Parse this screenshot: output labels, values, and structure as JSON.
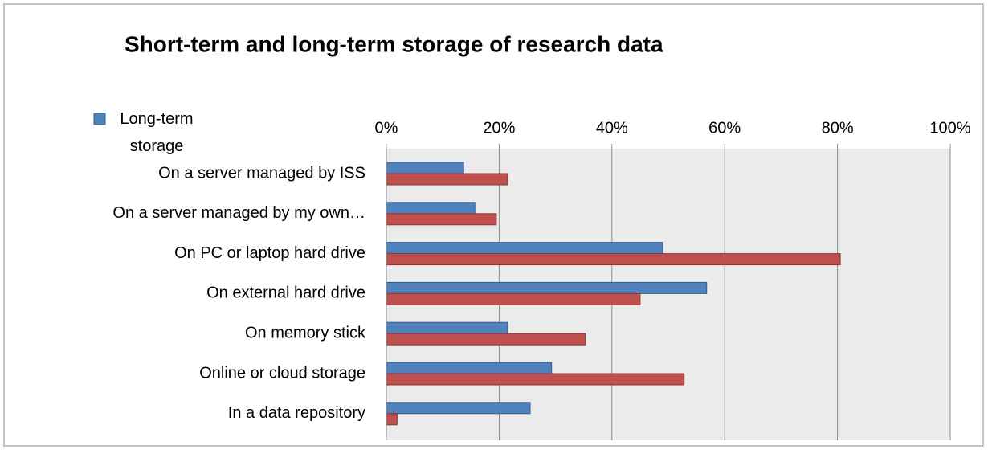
{
  "chart_data": {
    "type": "barh",
    "title": "Short-term and long-term storage of research data",
    "categories": [
      "On a server managed by ISS",
      "On a server managed by my own…",
      "On PC or laptop hard drive",
      "On external hard drive",
      "On memory stick",
      "Online or cloud storage",
      "In a data repository"
    ],
    "series": [
      {
        "name": "Long-term storage",
        "color": "#4f81bd",
        "values": [
          13.7,
          15.7,
          49,
          56.8,
          21.5,
          29.3,
          25.5
        ]
      },
      {
        "color": "#c0504d",
        "values": [
          21.5,
          19.5,
          80.5,
          45,
          35.3,
          52.8,
          1.9
        ]
      }
    ],
    "xlim": [
      0,
      100
    ],
    "xticks": [
      {
        "value": 0,
        "label": "0%"
      },
      {
        "value": 20,
        "label": "20%"
      },
      {
        "value": 40,
        "label": "40%"
      },
      {
        "value": 60,
        "label": "60%"
      },
      {
        "value": 80,
        "label": "80%"
      },
      {
        "value": 100,
        "label": "100%"
      }
    ],
    "grid": true
  }
}
